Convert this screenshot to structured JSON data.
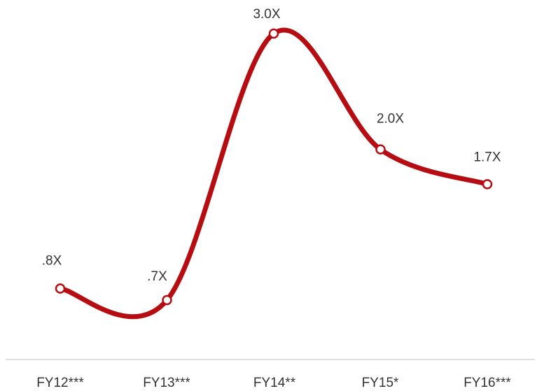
{
  "chart_data": {
    "type": "line",
    "categories": [
      "FY12***",
      "FY13***",
      "FY14**",
      "FY15*",
      "FY16***"
    ],
    "values": [
      0.8,
      0.7,
      3.0,
      2.0,
      1.7
    ],
    "data_labels": [
      ".8X",
      ".7X",
      "3.0X",
      "2.0X",
      "1.7X"
    ],
    "title": "",
    "xlabel": "",
    "ylabel": "",
    "ylim": [
      0,
      3.0
    ],
    "grid": false,
    "legend": "none",
    "smooth": true,
    "colors": {
      "line": "#b50d12",
      "marker_fill": "#ffffff",
      "axis": "#d6d6d6",
      "text": "#333333"
    }
  }
}
